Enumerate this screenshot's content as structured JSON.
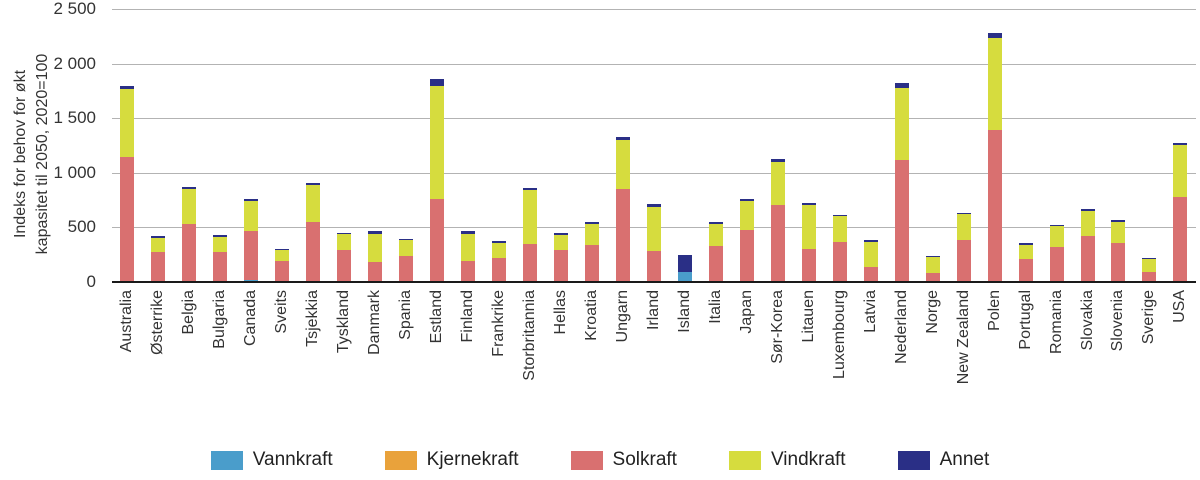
{
  "chart_data": {
    "type": "bar",
    "stacked": true,
    "title": "",
    "ylabel_lines": [
      "Indeks for behov for økt",
      "kapasitet til 2050, 2020=100"
    ],
    "ylim": [
      0,
      2500
    ],
    "yticks": [
      0,
      500,
      1000,
      1500,
      2000,
      2500
    ],
    "ytick_labels": [
      "0",
      "500",
      "1 000",
      "1 500",
      "2 000",
      "2 500"
    ],
    "grid": "horizontal",
    "legend_position": "bottom",
    "categories": [
      "Australia",
      "Østerrike",
      "Belgia",
      "Bulgaria",
      "Canada",
      "Sveits",
      "Tsjekkia",
      "Tyskland",
      "Danmark",
      "Spania",
      "Estland",
      "Finland",
      "Frankrike",
      "Storbritannia",
      "Hellas",
      "Kroatia",
      "Ungarn",
      "Irland",
      "Island",
      "Italia",
      "Japan",
      "Sør-Korea",
      "Litauen",
      "Luxembourg",
      "Latvia",
      "Nederland",
      "Norge",
      "New Zealand",
      "Polen",
      "Portugal",
      "Romania",
      "Slovakia",
      "Slovenia",
      "Sverige",
      "USA"
    ],
    "series": [
      {
        "name": "Vannkraft",
        "color": "#4a9dcb",
        "values": [
          10,
          0,
          0,
          0,
          30,
          0,
          0,
          0,
          0,
          0,
          0,
          0,
          0,
          0,
          0,
          0,
          0,
          0,
          100,
          0,
          0,
          0,
          0,
          0,
          0,
          0,
          15,
          15,
          0,
          0,
          0,
          0,
          0,
          10,
          0
        ]
      },
      {
        "name": "Kjernekraft",
        "color": "#e9a23b",
        "values": [
          0,
          0,
          0,
          0,
          0,
          0,
          0,
          0,
          0,
          0,
          0,
          0,
          0,
          0,
          0,
          0,
          0,
          0,
          0,
          0,
          0,
          0,
          0,
          0,
          0,
          0,
          0,
          0,
          0,
          0,
          0,
          0,
          0,
          0,
          0
        ]
      },
      {
        "name": "Solkraft",
        "color": "#d97070",
        "values": [
          1140,
          280,
          540,
          280,
          450,
          200,
          560,
          300,
          190,
          250,
          770,
          200,
          230,
          360,
          300,
          350,
          860,
          290,
          0,
          340,
          490,
          710,
          310,
          380,
          150,
          1130,
          80,
          375,
          1400,
          220,
          330,
          430,
          370,
          95,
          790
        ]
      },
      {
        "name": "Vindkraft",
        "color": "#d6dc3e",
        "values": [
          630,
          130,
          320,
          140,
          270,
          100,
          340,
          150,
          260,
          140,
          1030,
          250,
          140,
          490,
          140,
          190,
          450,
          410,
          0,
          200,
          260,
          400,
          400,
          230,
          230,
          660,
          145,
          240,
          840,
          130,
          190,
          230,
          190,
          115,
          470
        ]
      },
      {
        "name": "Annet",
        "color": "#2a2f86",
        "values": [
          20,
          20,
          15,
          20,
          20,
          15,
          20,
          10,
          30,
          15,
          70,
          30,
          15,
          20,
          15,
          15,
          25,
          25,
          160,
          15,
          20,
          25,
          20,
          10,
          10,
          45,
          10,
          15,
          50,
          15,
          15,
          20,
          15,
          10,
          20
        ]
      }
    ]
  }
}
